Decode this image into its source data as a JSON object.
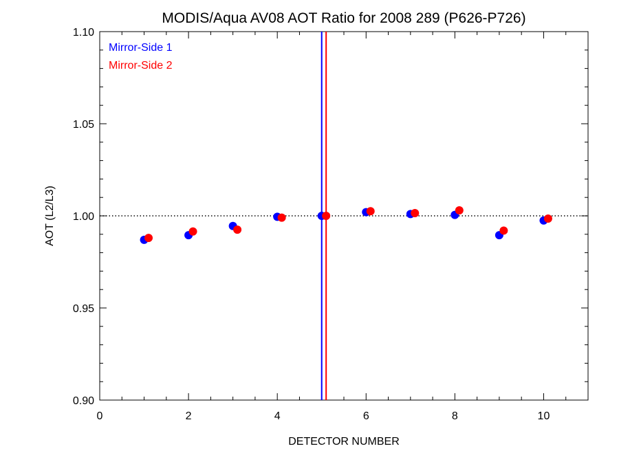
{
  "chart_data": {
    "type": "scatter",
    "title": "MODIS/Aqua AV08 AOT Ratio for 2008 289 (P626-P726)",
    "xlabel": "DETECTOR NUMBER",
    "ylabel": "AOT (L2/L3)",
    "xlim": [
      0,
      11
    ],
    "ylim": [
      0.9,
      1.1
    ],
    "x_ticks": [
      0,
      2,
      4,
      6,
      8,
      10
    ],
    "x_tick_labels": [
      "0",
      "2",
      "4",
      "6",
      "8",
      "10"
    ],
    "y_ticks": [
      0.9,
      0.95,
      1.0,
      1.05,
      1.1
    ],
    "y_tick_labels": [
      "0.90",
      "0.95",
      "1.00",
      "1.05",
      "1.10"
    ],
    "x_minor_step": 0.5,
    "y_minor_step": 0.01,
    "reference_line": {
      "y": 1.0,
      "style": "dotted"
    },
    "vertical_lines": [
      {
        "x": 5.0,
        "color": "#0000ff"
      },
      {
        "x": 5.1,
        "color": "#ff0000"
      }
    ],
    "legend_position": "top-left",
    "grid": false,
    "series": [
      {
        "name": "Mirror-Side 1",
        "color": "#0000ff",
        "x": [
          1,
          2,
          3,
          4,
          5,
          6,
          7,
          8,
          9,
          10
        ],
        "y": [
          0.987,
          0.9895,
          0.9945,
          0.9995,
          1.0,
          1.002,
          1.001,
          1.0005,
          0.9895,
          0.9975
        ]
      },
      {
        "name": "Mirror-Side 2",
        "color": "#ff0000",
        "x": [
          1.1,
          2.1,
          3.1,
          4.1,
          5.1,
          6.1,
          7.1,
          8.1,
          9.1,
          10.1
        ],
        "y": [
          0.988,
          0.9915,
          0.9925,
          0.999,
          1.0,
          1.0025,
          1.0015,
          1.003,
          0.992,
          0.9985
        ]
      }
    ]
  }
}
